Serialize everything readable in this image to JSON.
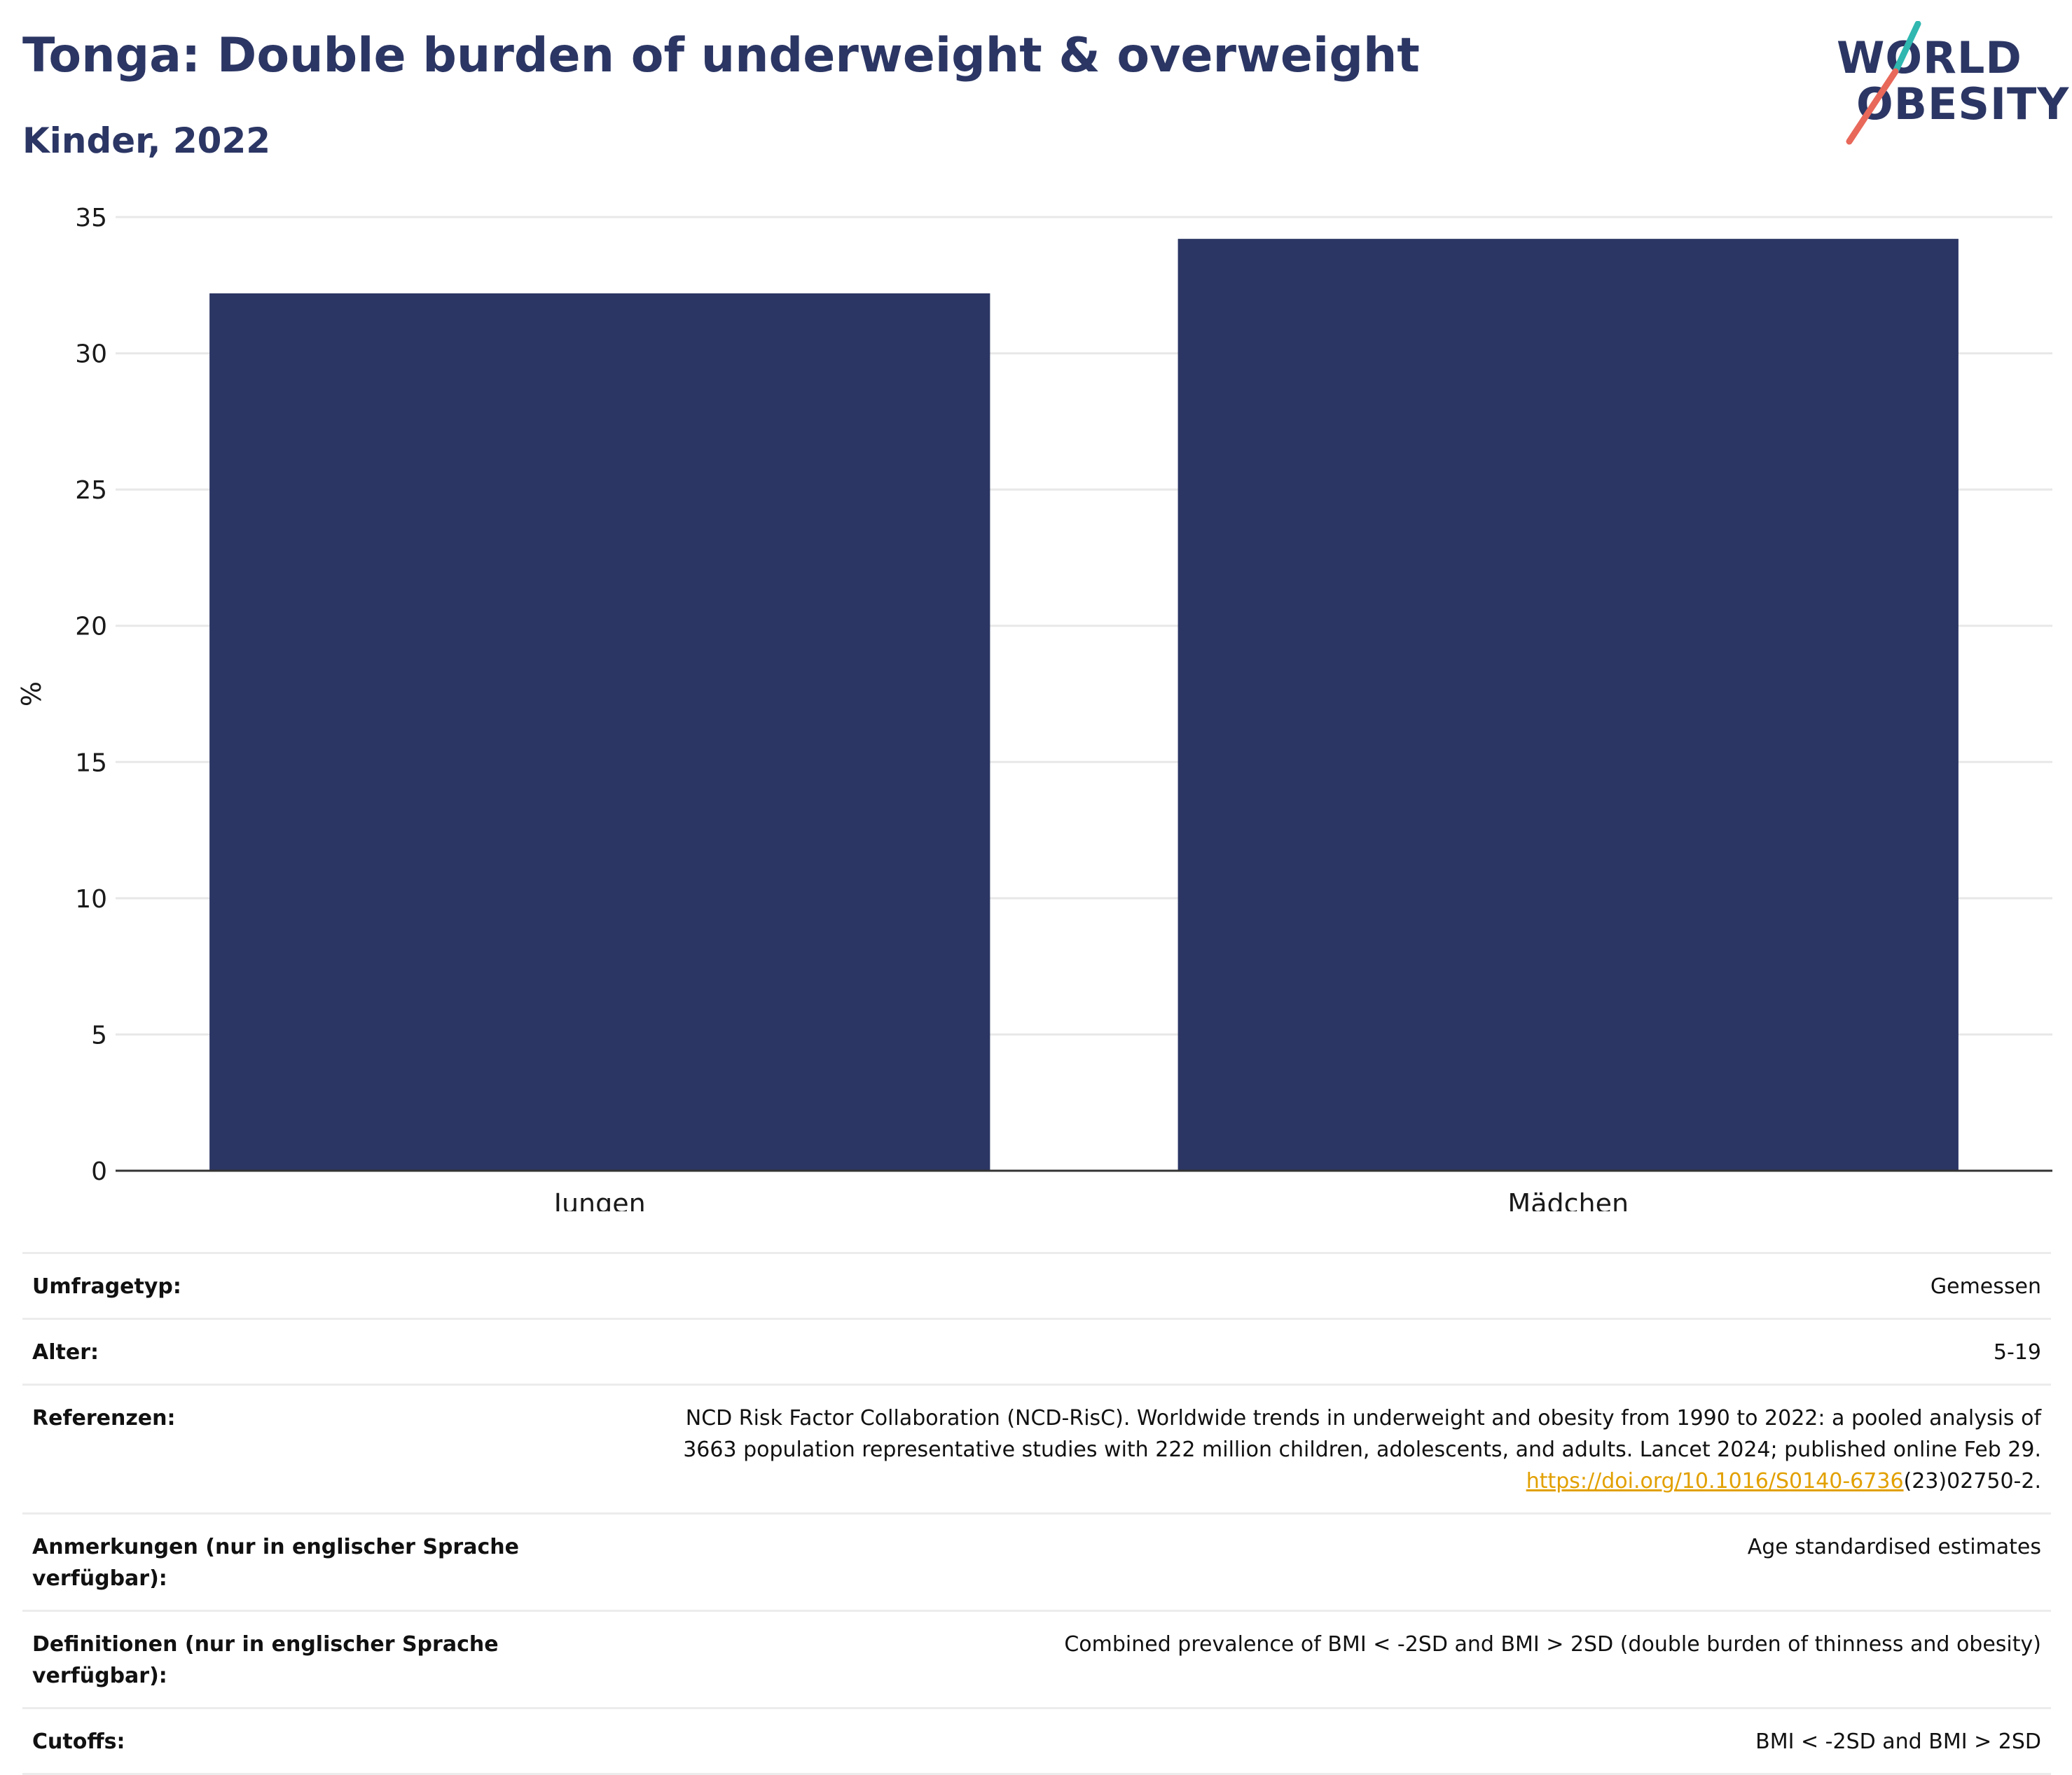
{
  "header": {
    "title": "Tonga: Double burden of underweight & overweight",
    "subtitle": "Kinder, 2022"
  },
  "logo": {
    "line1": "WORLD",
    "line2": "OBESITY",
    "colors": {
      "teal": "#2fb7b0",
      "coral": "#e8685a",
      "navy": "#2b3664"
    }
  },
  "chart_data": {
    "type": "bar",
    "categories": [
      "Jungen",
      "Mädchen"
    ],
    "values": [
      32.2,
      34.2
    ],
    "ylabel": "%",
    "xlabel": "",
    "ylim": [
      0,
      35
    ],
    "yticks": [
      0,
      5,
      10,
      15,
      20,
      25,
      30,
      35
    ],
    "grid": true,
    "bar_color": "#2b3664"
  },
  "info": {
    "rows": [
      {
        "key": "Umfragetyp:",
        "value": "Gemessen"
      },
      {
        "key": "Alter:",
        "value": "5-19"
      },
      {
        "key": "Referenzen:",
        "value_line1": "NCD Risk Factor Collaboration (NCD-RisC). Worldwide trends in underweight and obesity from 1990 to 2022: a pooled analysis of",
        "value_line2": "3663 population representative studies with 222 million children, adolescents, and adults. Lancet 2024; published online Feb 29.",
        "link": "https://doi.org/10.1016/S0140-6736",
        "link_suffix": "(23)02750-2."
      },
      {
        "key": "Anmerkungen (nur in englischer Sprache verfügbar):",
        "value": "Age standardised estimates"
      },
      {
        "key": "Definitionen (nur in englischer Sprache verfügbar):",
        "value": "Combined prevalence of BMI < -2SD and BMI > 2SD (double burden of thinness and obesity)"
      },
      {
        "key": "Cutoffs:",
        "value": "BMI < -2SD and BMI > 2SD"
      }
    ]
  }
}
